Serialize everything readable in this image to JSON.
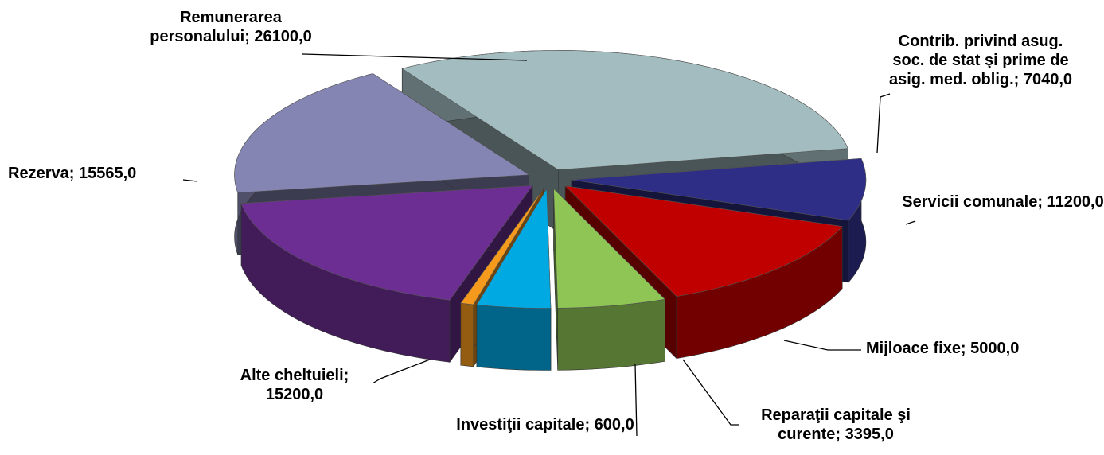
{
  "chart_data": {
    "type": "pie",
    "categories": [
      "Remunerarea personalului;",
      "Contrib. privind asug. soc. de stat şi prime de asig. med. oblig.;",
      "Servicii comunale;",
      "Mijloace fixe;",
      "Reparaţii capitale şi curente;",
      "Investiţii capitale;",
      "Alte cheltuieli;",
      "Rezerva;"
    ],
    "values": [
      26100,
      7040,
      11200,
      5000,
      3395,
      600,
      15200,
      15565
    ],
    "value_labels": [
      "26100,0",
      "7040,0",
      "11200,0",
      "5000,0",
      "3395,0",
      "600,0",
      "15200,0",
      "15565,0"
    ],
    "colors": [
      "#a2bcbf",
      "#2e2e86",
      "#c00000",
      "#8fc555",
      "#00a9e2",
      "#f59a1c",
      "#6c2e93",
      "#8585b3"
    ]
  }
}
